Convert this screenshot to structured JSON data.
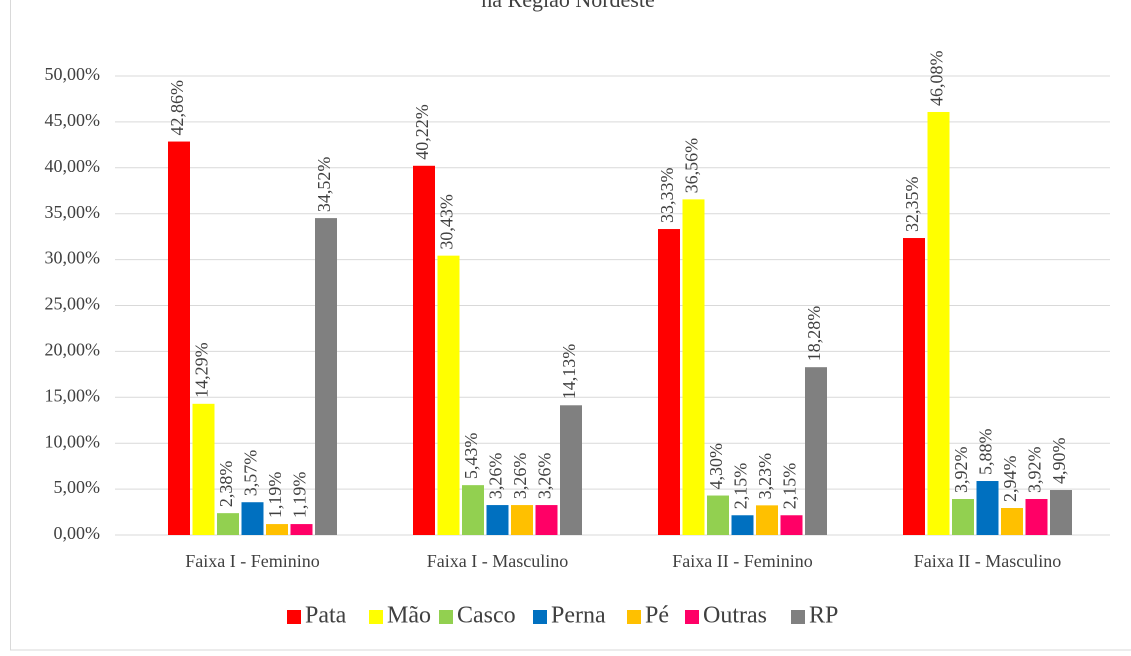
{
  "chart_data": {
    "type": "bar",
    "title": "na Região Nordeste",
    "categories": [
      "Faixa I - Feminino",
      "Faixa I - Masculino",
      "Faixa II - Feminino",
      "Faixa II - Masculino"
    ],
    "series": [
      {
        "name": "Pata",
        "color": "#ff0000",
        "values": [
          42.86,
          40.22,
          33.33,
          32.35
        ],
        "value_labels": [
          "42,86%",
          "40,22%",
          "33,33%",
          "32,35%"
        ]
      },
      {
        "name": "Mão",
        "color": "#ffff00",
        "values": [
          14.29,
          30.43,
          36.56,
          46.08
        ],
        "value_labels": [
          "14,29%",
          "30,43%",
          "36,56%",
          "46,08%"
        ]
      },
      {
        "name": "Casco",
        "color": "#92d050",
        "values": [
          2.38,
          5.43,
          4.3,
          3.92
        ],
        "value_labels": [
          "2,38%",
          "5,43%",
          "4,30%",
          "3,92%"
        ]
      },
      {
        "name": "Perna",
        "color": "#0070c0",
        "values": [
          3.57,
          3.26,
          2.15,
          5.88
        ],
        "value_labels": [
          "3,57%",
          "3,26%",
          "2,15%",
          "5,88%"
        ]
      },
      {
        "name": "Pé",
        "color": "#ffc000",
        "values": [
          1.19,
          3.26,
          3.23,
          2.94
        ],
        "value_labels": [
          "1,19%",
          "3,26%",
          "3,23%",
          "2,94%"
        ]
      },
      {
        "name": "Outras",
        "color": "#ff0066",
        "values": [
          1.19,
          3.26,
          2.15,
          3.92
        ],
        "value_labels": [
          "1,19%",
          "3,26%",
          "2,15%",
          "3,92%"
        ]
      },
      {
        "name": "RP",
        "color": "#808080",
        "values": [
          34.52,
          14.13,
          18.28,
          4.9
        ],
        "value_labels": [
          "34,52%",
          "14,13%",
          "18,28%",
          "4,90%"
        ]
      }
    ],
    "ylim": [
      0,
      50
    ],
    "yticks": [
      {
        "value": 0,
        "label": "0,00%"
      },
      {
        "value": 5,
        "label": "5,00%"
      },
      {
        "value": 10,
        "label": "10,00%"
      },
      {
        "value": 15,
        "label": "15,00%"
      },
      {
        "value": 20,
        "label": "20,00%"
      },
      {
        "value": 25,
        "label": "25,00%"
      },
      {
        "value": 30,
        "label": "30,00%"
      },
      {
        "value": 35,
        "label": "35,00%"
      },
      {
        "value": 40,
        "label": "40,00%"
      },
      {
        "value": 45,
        "label": "45,00%"
      },
      {
        "value": 50,
        "label": "50,00%"
      }
    ],
    "grid": true,
    "legend": "bottom"
  }
}
